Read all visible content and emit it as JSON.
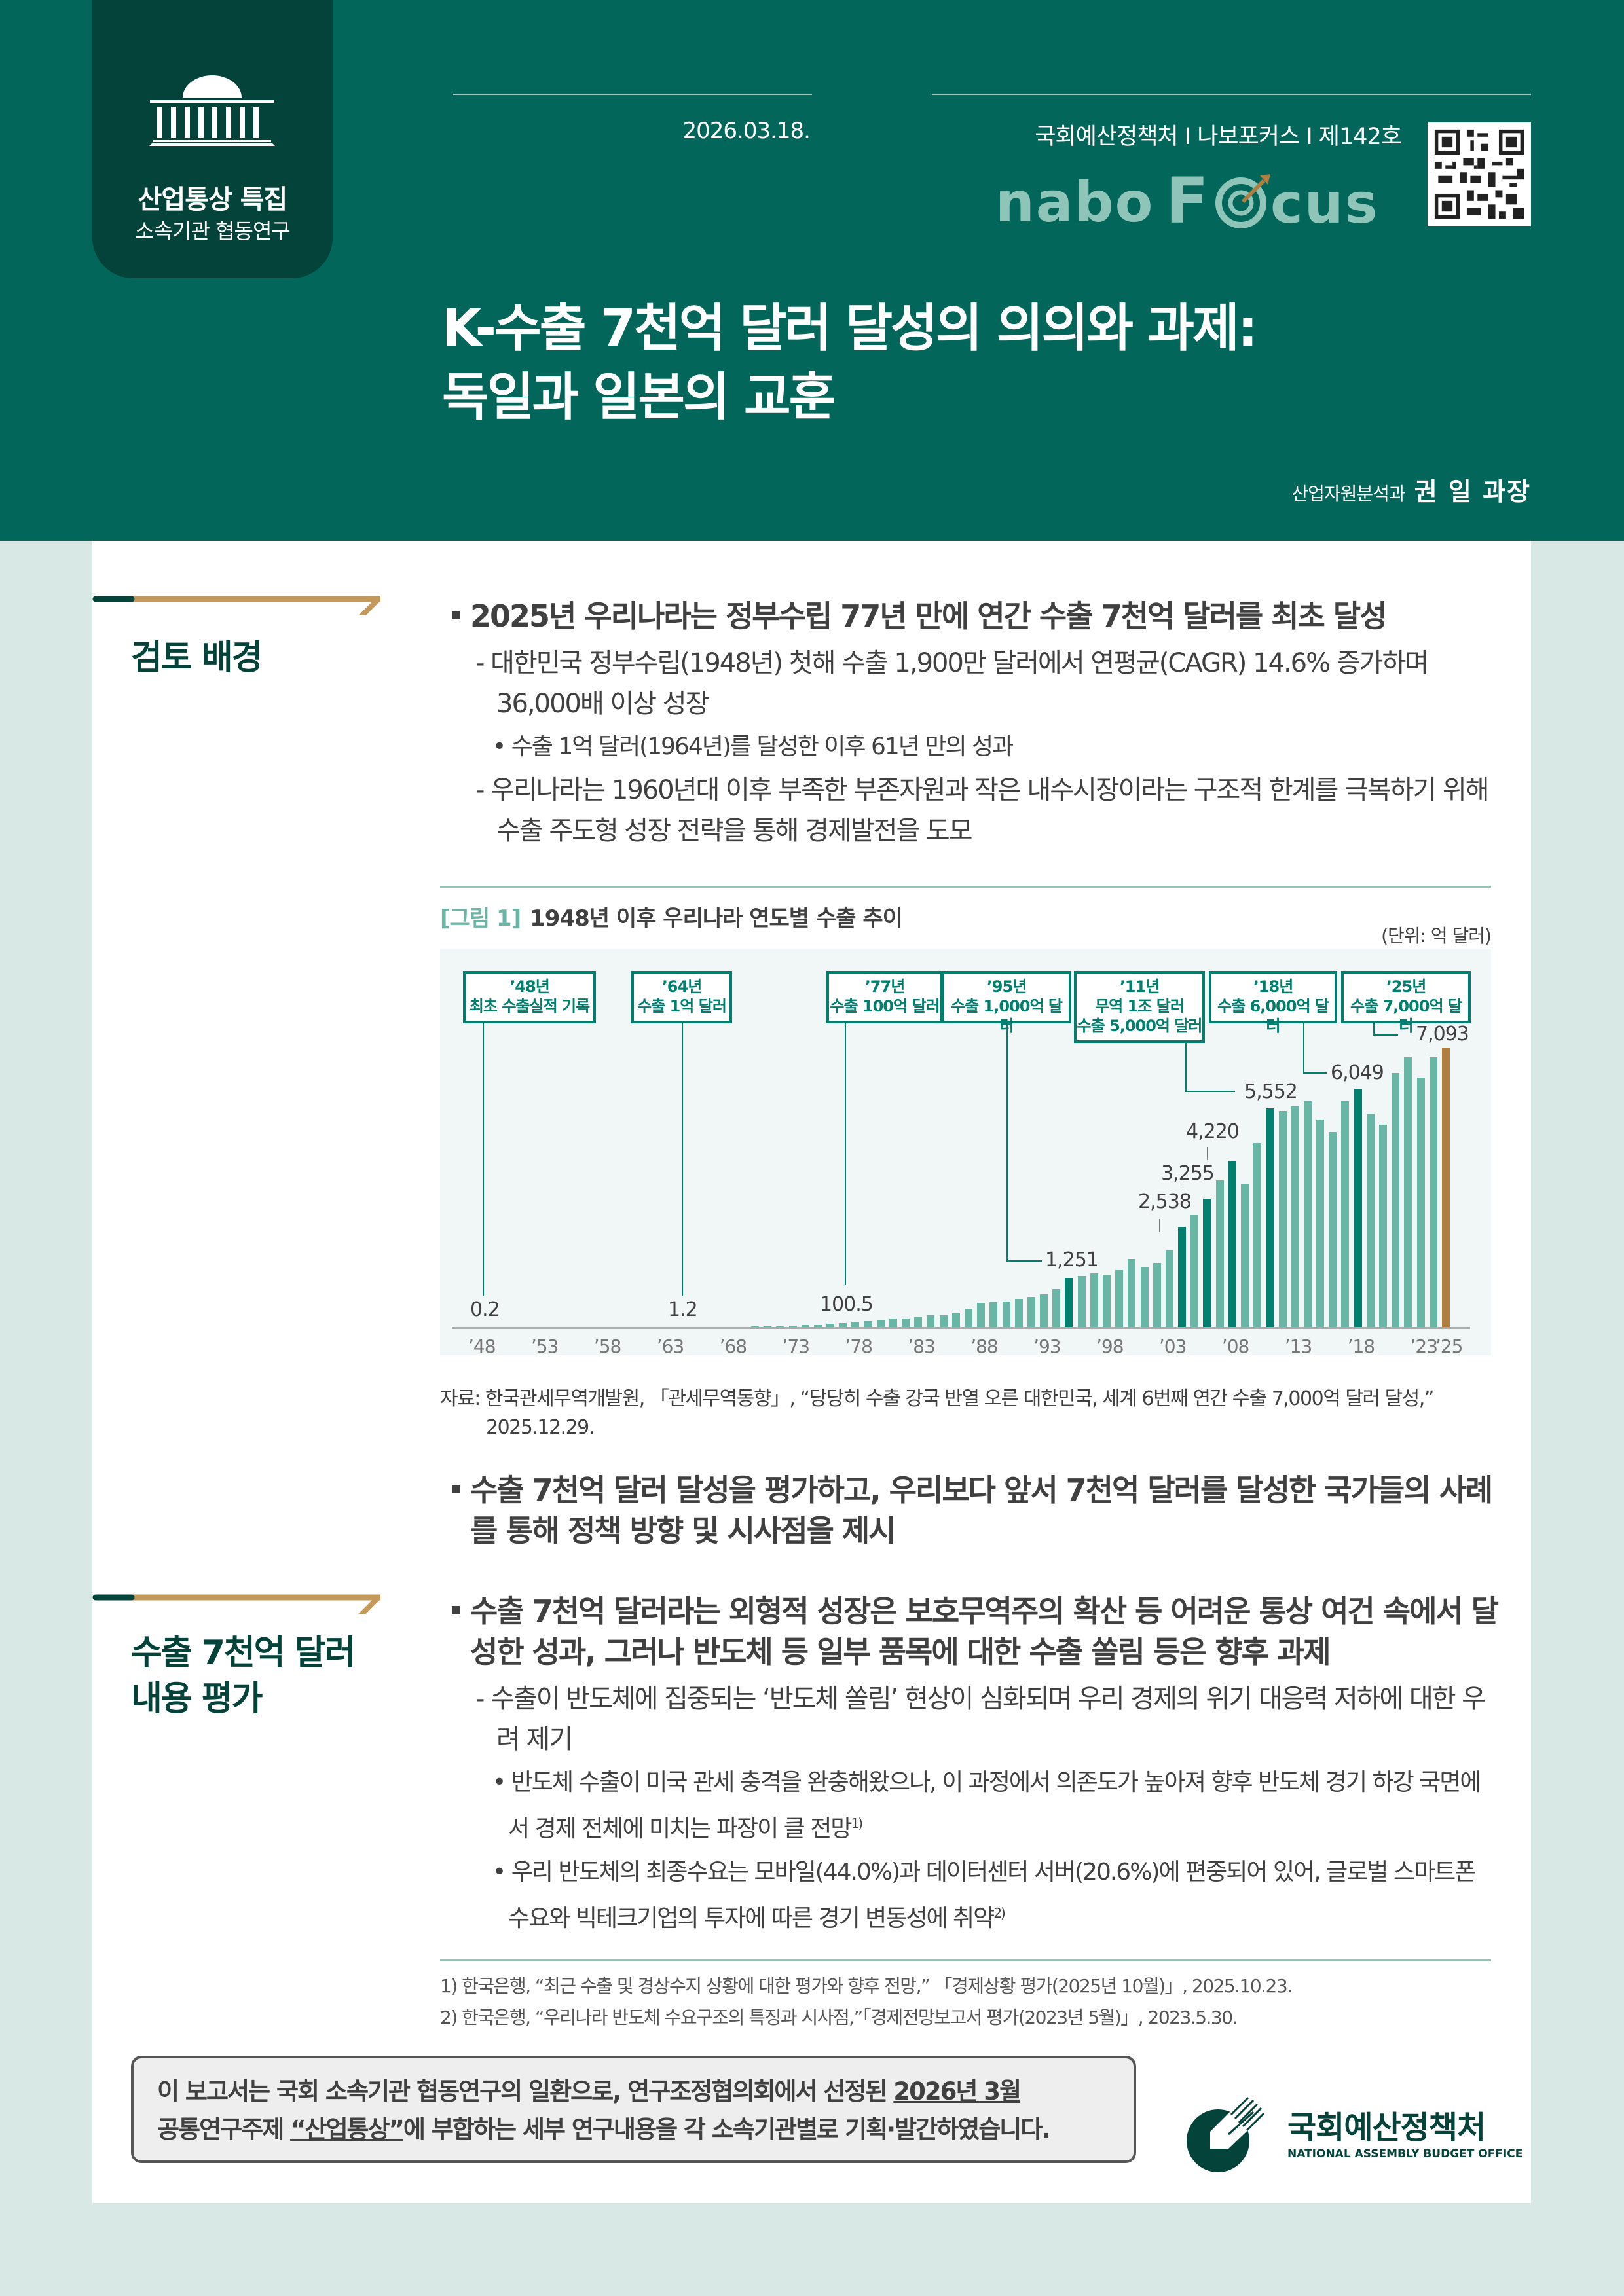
{
  "header": {
    "badge_line1": "산업통상 특집",
    "badge_line2": "소속기관 협동연구",
    "date": "2026.03.18.",
    "series": "국회예산정책처 I 나보포커스 I 제142호",
    "logo_text": "nabo Focus",
    "title_line1": "K-수출 7천억 달러 달성의 의의와 과제:",
    "title_line2": "독일과 일본의 교훈",
    "author_dept": "산업자원분석과",
    "author_name": "권  일 과장",
    "colors": {
      "header_bg": "#02665A",
      "badge_bg": "#03433A",
      "accent_gold": "#C4975A",
      "page_bg": "#D8E8E4"
    }
  },
  "sections": [
    {
      "label": "검토 배경",
      "bullets": [
        {
          "text": "2025년 우리나라는 정부수립 77년 만에 연간 수출 7천억 달러를 최초 달성",
          "sub": [
            {
              "type": "dash",
              "text": "대한민국 정부수립(1948년) 첫해 수출 1,900만 달러에서 연평균(CAGR) 14.6% 증가하며 36,000배 이상 성장"
            },
            {
              "type": "dot",
              "text": "수출 1억 달러(1964년)를 달성한 이후 61년 만의 성과"
            },
            {
              "type": "dash",
              "text": "우리나라는 1960년대 이후 부족한 부존자원과 작은 내수시장이라는 구조적 한계를 극복하기 위해 수출 주도형 성장 전략을 통해 경제발전을 도모"
            }
          ]
        }
      ]
    },
    {
      "label_line1": "수출 7천억 달러",
      "label_line2": "내용 평가",
      "pre_bullet": "수출 7천억 달러 달성을 평가하고, 우리보다 앞서 7천억 달러를 달성한 국가들의 사례를 통해 정책 방향 및 시사점을 제시",
      "bullets": [
        {
          "text": "수출 7천억 달러라는 외형적 성장은 보호무역주의 확산 등 어려운 통상 여건 속에서 달성한 성과, 그러나 반도체 등 일부 품목에 대한 수출 쏠림 등은 향후 과제",
          "sub": [
            {
              "type": "dash",
              "text": "수출이 반도체에 집중되는 ‘반도체 쏠림’ 현상이 심화되며 우리 경제의 위기 대응력 저하에 대한 우려 제기"
            },
            {
              "type": "dot",
              "text": "반도체 수출이 미국 관세 충격을 완충해왔으나, 이 과정에서 의존도가 높아져 향후 반도체 경기 하강 국면에서 경제 전체에 미치는 파장이 클 전망",
              "sup": "1)"
            },
            {
              "type": "dot",
              "text": "우리 반도체의 최종수요는 모바일(44.0%)과 데이터센터 서버(20.6%)에 편중되어 있어, 글로벌 스마트폰 수요와 빅테크기업의 투자에 따른 경기 변동성에 취약",
              "sup": "2)"
            }
          ]
        }
      ]
    }
  ],
  "figure": {
    "tag": "[그림 1]",
    "title": "1948년 이후 우리나라 연도별 수출 추이",
    "unit": "(단위: 억 달러)",
    "source_line1": "자료: 한국관세무역개발원, 「관세무역동향」, “당당히 수출 강국 반열 오른 대한민국, 세계 6번째 연간 수출 7,000억 달러 달성,”",
    "source_line2": "2025.12.29.",
    "callouts": [
      {
        "year": "’48년",
        "text": "최초 수출실적 기록"
      },
      {
        "year": "’64년",
        "text": "수출 1억 달러"
      },
      {
        "year": "’77년",
        "text": "수출 100억 달러"
      },
      {
        "year": "’95년",
        "text": "수출 1,000억 달러"
      },
      {
        "year": "’11년",
        "text": "무역 1조 달러",
        "text2": "수출 5,000억 달러"
      },
      {
        "year": "’18년",
        "text": "수출 6,000억 달러"
      },
      {
        "year": "’25년",
        "text": "수출 7,000억 달러"
      }
    ],
    "value_labels": [
      "0.2",
      "1.2",
      "100.5",
      "1,251",
      "2,538",
      "3,255",
      "4,220",
      "5,552",
      "6,049",
      "7,093"
    ],
    "x_ticks": [
      "’48",
      "’53",
      "’58",
      "’63",
      "’68",
      "’73",
      "’78",
      "’83",
      "’88",
      "’93",
      "’98",
      "’03",
      "’08",
      "’13",
      "’18",
      "’23",
      "’25"
    ]
  },
  "chart_data": {
    "type": "bar",
    "title": "1948년 이후 우리나라 연도별 수출 추이",
    "xlabel": "",
    "ylabel": "억 달러",
    "ylim": [
      0,
      7500
    ],
    "grid": false,
    "x": [
      1948,
      1949,
      1950,
      1951,
      1952,
      1953,
      1954,
      1955,
      1956,
      1957,
      1958,
      1959,
      1960,
      1961,
      1962,
      1963,
      1964,
      1965,
      1966,
      1967,
      1968,
      1969,
      1970,
      1971,
      1972,
      1973,
      1974,
      1975,
      1976,
      1977,
      1978,
      1979,
      1980,
      1981,
      1982,
      1983,
      1984,
      1985,
      1986,
      1987,
      1988,
      1989,
      1990,
      1991,
      1992,
      1993,
      1994,
      1995,
      1996,
      1997,
      1998,
      1999,
      2000,
      2001,
      2002,
      2003,
      2004,
      2005,
      2006,
      2007,
      2008,
      2009,
      2010,
      2011,
      2012,
      2013,
      2014,
      2015,
      2016,
      2017,
      2018,
      2019,
      2020,
      2021,
      2022,
      2023,
      2024,
      2025
    ],
    "values": [
      0.2,
      0.2,
      0.2,
      0.2,
      0.3,
      0.4,
      0.2,
      0.2,
      0.2,
      0.2,
      0.2,
      0.2,
      0.3,
      0.4,
      0.5,
      0.9,
      1.2,
      1.8,
      2.5,
      3.2,
      4.6,
      6.2,
      8.4,
      10.7,
      16.2,
      32.3,
      44.6,
      50.8,
      77.2,
      100.5,
      127.1,
      150.6,
      175.1,
      212.5,
      218.5,
      244.5,
      292.5,
      302.8,
      347.1,
      472.8,
      607.0,
      623.8,
      650.2,
      718.7,
      766.3,
      822.4,
      960.1,
      1251,
      1297,
      1362,
      1323,
      1437,
      1723,
      1504,
      1625,
      1938,
      2538,
      2844,
      3255,
      3715,
      4220,
      3635,
      4664,
      5552,
      5479,
      5596,
      5727,
      5268,
      4954,
      5737,
      6049,
      5422,
      5125,
      6444,
      6836,
      6327,
      6838,
      7093
    ],
    "highlighted_years": [
      1995,
      2004,
      2006,
      2008,
      2011,
      2018
    ],
    "final_year_highlight": 2025,
    "annotations": [
      {
        "year": 1948,
        "label": "0.2",
        "callout": "’48년 최초 수출실적 기록"
      },
      {
        "year": 1964,
        "label": "1.2",
        "callout": "’64년 수출 1억 달러"
      },
      {
        "year": 1977,
        "label": "100.5",
        "callout": "’77년 수출 100억 달러"
      },
      {
        "year": 1995,
        "label": "1,251",
        "callout": "’95년 수출 1,000억 달러"
      },
      {
        "year": 2004,
        "label": "2,538"
      },
      {
        "year": 2006,
        "label": "3,255"
      },
      {
        "year": 2008,
        "label": "4,220"
      },
      {
        "year": 2011,
        "label": "5,552",
        "callout": "’11년 무역 1조 달러 수출 5,000억 달러"
      },
      {
        "year": 2018,
        "label": "6,049",
        "callout": "’18년 수출 6,000억 달러"
      },
      {
        "year": 2025,
        "label": "7,093",
        "callout": "’25년 수출 7,000억 달러"
      }
    ],
    "colors": {
      "normal": "#6AB6A6",
      "highlight": "#007F6E",
      "final": "#B07E3E"
    }
  },
  "footnotes": [
    "1)  한국은행, “최근 수출 및 경상수지 상황에 대한 평가와 향후 전망,” 「경제상황 평가(2025년 10월)」, 2025.10.23.",
    "2)  한국은행, “우리나라 반도체 수요구조의 특징과 시사점,”「경제전망보고서 평가(2023년 5월)」, 2023.5.30."
  ],
  "note_box": {
    "line1_a": "이 보고서는 국회 소속기관 협동연구의 일환으로, 연구조정협의회에서 선정된 ",
    "line1_u": "2026년 3월",
    "line2_a": "공통연구주제 ",
    "line2_u": "“산업통상”",
    "line2_b": "에 부합하는 세부 연구내용을 각 소속기관별로 기획·발간하였습니다."
  },
  "footer_logo": {
    "kr": "국회예산정책처",
    "en": "NATIONAL ASSEMBLY BUDGET OFFICE"
  }
}
